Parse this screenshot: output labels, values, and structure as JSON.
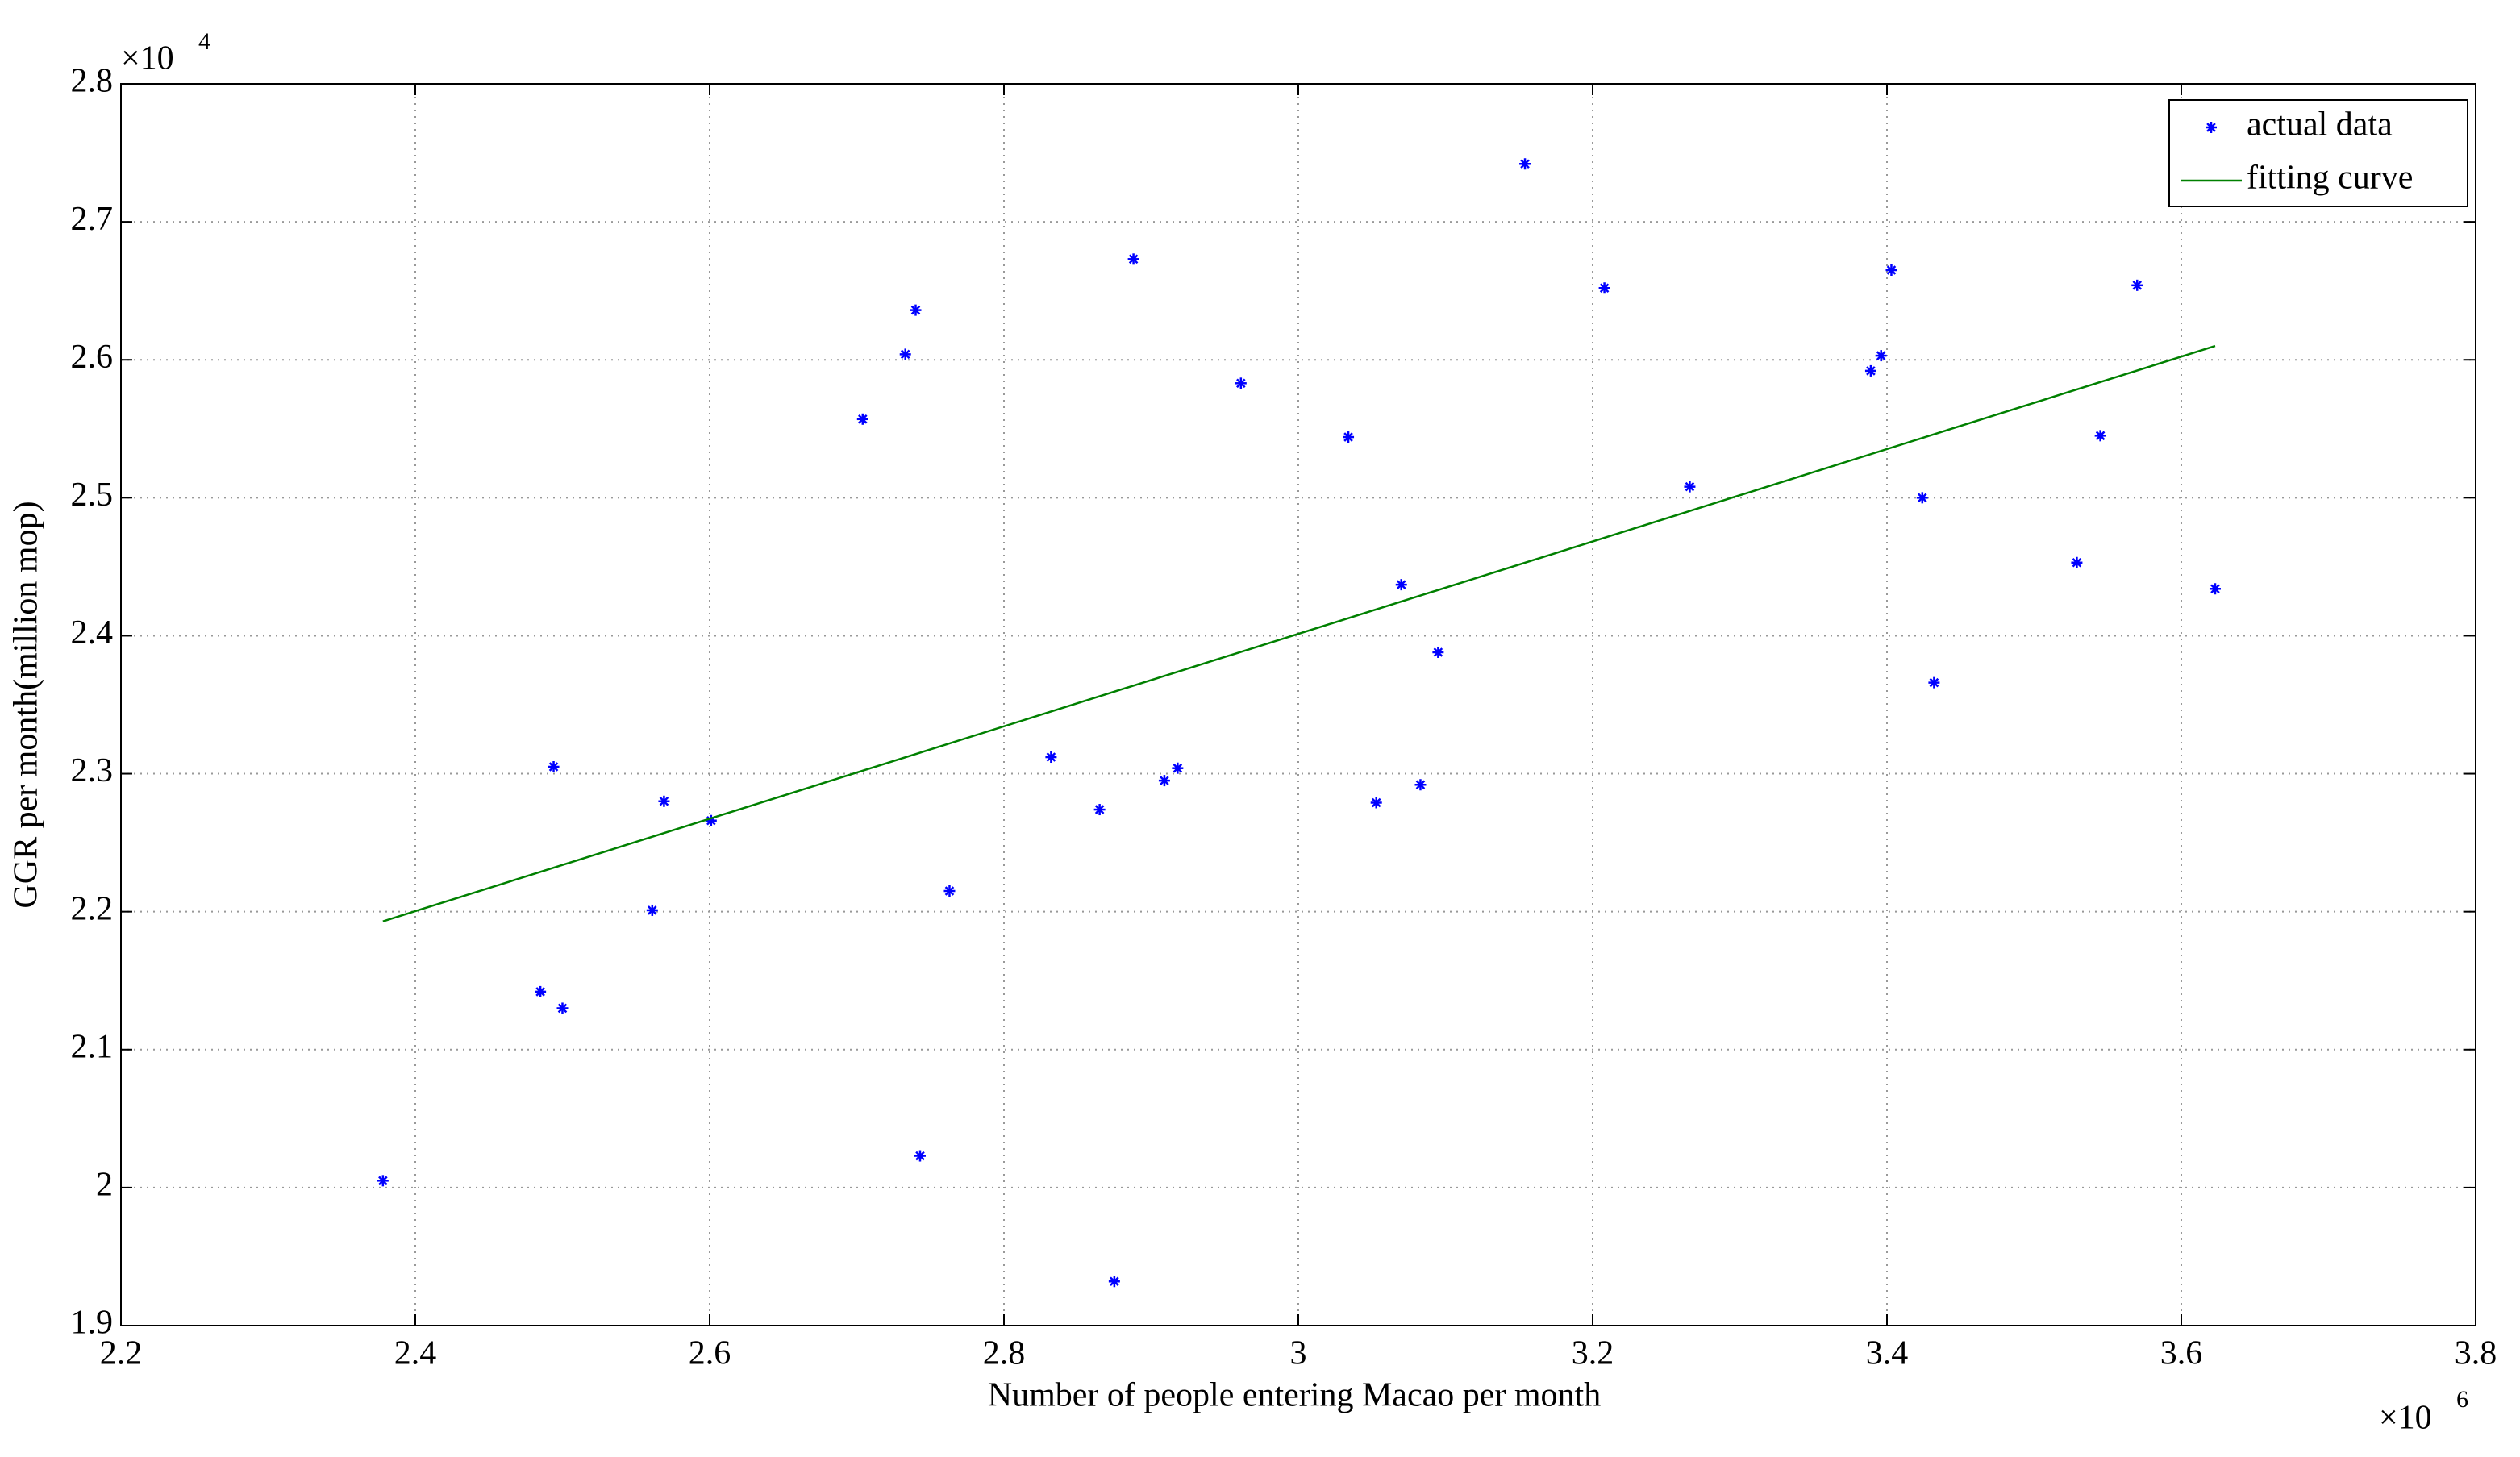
{
  "chart_data": {
    "type": "scatter",
    "xlabel": "Number of people entering Macao per month",
    "ylabel": "GGR per month(million mop)",
    "x_multiplier": "×10",
    "x_exponent": "6",
    "y_multiplier": "×10",
    "y_exponent": "4",
    "xlim": [
      2.2,
      3.8
    ],
    "xticks": [
      2.2,
      2.4,
      2.6,
      2.8,
      3,
      3.2,
      3.4,
      3.6,
      3.8
    ],
    "ylim": [
      1.9,
      2.8
    ],
    "yticks": [
      1.9,
      2,
      2.1,
      2.2,
      2.3,
      2.4,
      2.5,
      2.6,
      2.7,
      2.8
    ],
    "grid": true,
    "legend": "top-right",
    "series": [
      {
        "name": "actual data",
        "color": "#0000ff",
        "mode": "markers",
        "x": [
          2.378,
          2.485,
          2.494,
          2.5,
          2.561,
          2.569,
          2.601,
          2.704,
          2.733,
          2.74,
          2.743,
          2.763,
          2.832,
          2.865,
          2.875,
          2.888,
          2.909,
          2.918,
          2.961,
          3.034,
          3.053,
          3.07,
          3.083,
          3.095,
          3.154,
          3.208,
          3.266,
          3.389,
          3.396,
          3.403,
          3.424,
          3.432,
          3.529,
          3.545,
          3.57,
          3.623
        ],
        "values": [
          2.005,
          2.142,
          2.305,
          2.13,
          2.201,
          2.28,
          2.266,
          2.557,
          2.604,
          2.636,
          2.023,
          2.215,
          2.312,
          2.274,
          1.932,
          2.673,
          2.295,
          2.304,
          2.583,
          2.544,
          2.279,
          2.437,
          2.292,
          2.388,
          2.742,
          2.652,
          2.508,
          2.592,
          2.603,
          2.665,
          2.5,
          2.366,
          2.453,
          2.545,
          2.654,
          2.434
        ]
      },
      {
        "name": "fitting curve",
        "color": "#008000",
        "mode": "lines",
        "x": [
          2.378,
          3.623
        ],
        "values": [
          2.193,
          2.61
        ]
      }
    ]
  }
}
